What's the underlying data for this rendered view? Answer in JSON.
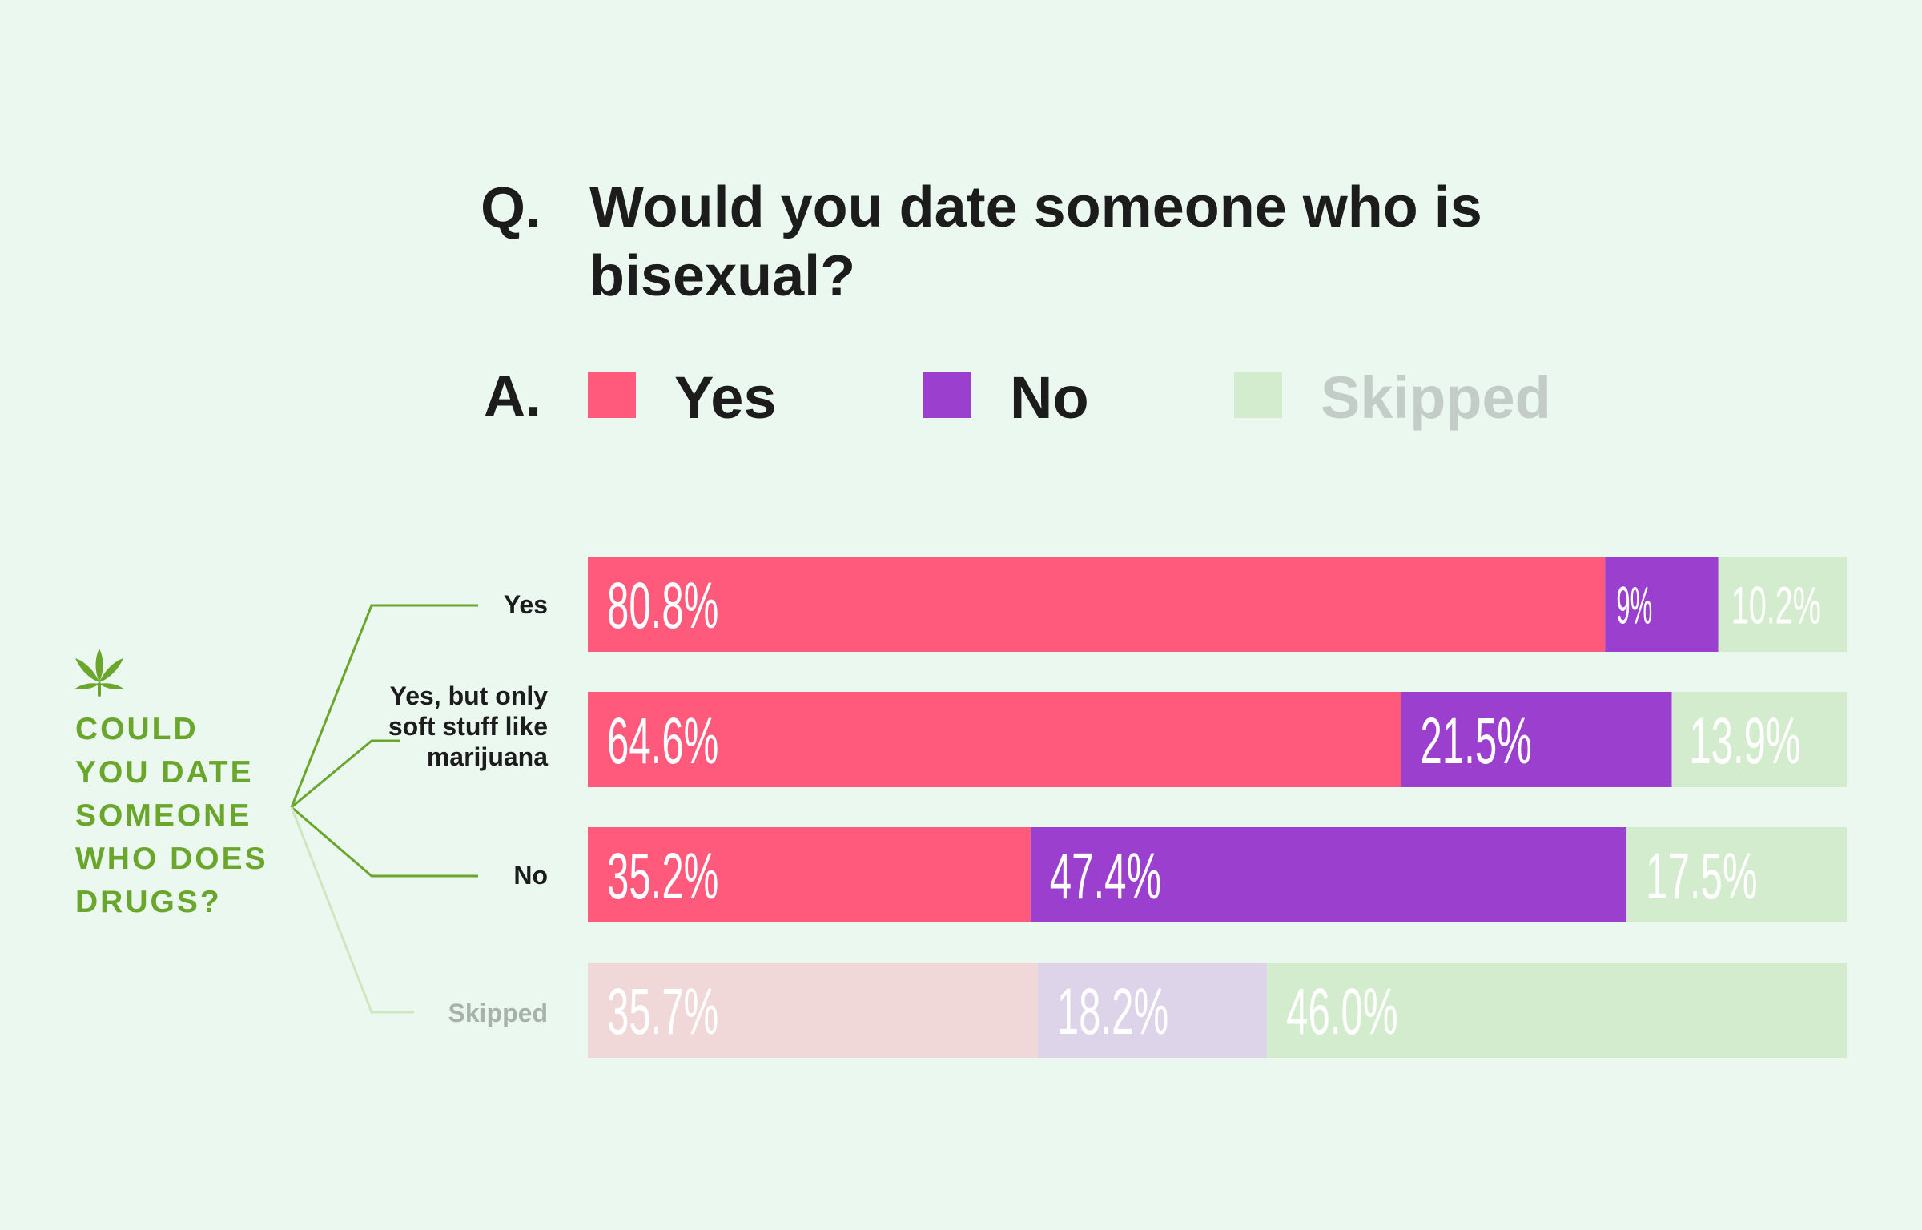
{
  "question": {
    "q_marker": "Q.",
    "text": "Would you date someone who is bisexual?"
  },
  "answer": {
    "a_marker": "A.",
    "legend": [
      {
        "label": "Yes",
        "color": "#ff5a7b",
        "text_color": "#1c1c1c"
      },
      {
        "label": "No",
        "color": "#9b3fcf",
        "text_color": "#1c1c1c"
      },
      {
        "label": "Skipped",
        "color": "#d4ecce",
        "text_color": "#c3ccc6"
      }
    ]
  },
  "side": {
    "icon": "cannabis-leaf-icon",
    "title": "COULD YOU DATE SOMEONE WHO DOES DRUGS?",
    "accent_color": "#6aa62b",
    "skipped_line_color": "#cfe6c0"
  },
  "chart_data": {
    "type": "bar",
    "orientation": "horizontal",
    "stacked": true,
    "categories": [
      "Yes",
      "Yes, but only soft stuff like marijuana",
      "No",
      "Skipped"
    ],
    "series": [
      {
        "name": "Yes",
        "values": [
          80.8,
          64.6,
          35.2,
          35.7
        ],
        "labels": [
          "80.8%",
          "64.6%",
          "35.2%",
          "35.7%"
        ]
      },
      {
        "name": "No",
        "values": [
          9,
          21.5,
          47.4,
          18.2
        ],
        "labels": [
          "9%",
          "21.5%",
          "47.4%",
          "18.2%"
        ]
      },
      {
        "name": "Skipped",
        "values": [
          10.2,
          13.9,
          17.5,
          46.0
        ],
        "labels": [
          "10.2%",
          "13.9%",
          "17.5%",
          "46.0%"
        ]
      }
    ],
    "colors": {
      "normal": [
        "#ff5a7b",
        "#9b3fcf",
        "#d4ecce"
      ],
      "faded": [
        "#f0d8d9",
        "#ddd4ea",
        "#d4ecce"
      ]
    },
    "faded_rows": [
      3
    ],
    "xlim": [
      0,
      100
    ]
  }
}
